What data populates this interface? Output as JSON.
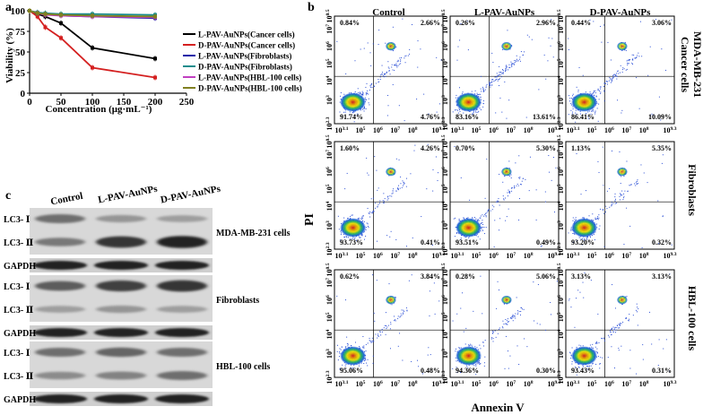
{
  "panels": {
    "a": {
      "label": "a",
      "chart_data": {
        "type": "line",
        "xlabel": "Concentration (μg·mL⁻¹)",
        "ylabel": "Viability (%)",
        "xlim": [
          0,
          250
        ],
        "ylim": [
          0,
          100
        ],
        "xticks": [
          "0",
          "50",
          "100",
          "150",
          "200",
          "250"
        ],
        "yticks": [
          "0",
          "25",
          "50",
          "75",
          "100"
        ],
        "legend_position": "right",
        "x": [
          0,
          12.5,
          25,
          50,
          100,
          200
        ],
        "series": [
          {
            "name": "L-PAV-AuNPs(Cancer cells)",
            "color": "#000000",
            "values": [
              100,
              96,
              93,
              85,
              55,
              42
            ]
          },
          {
            "name": "D-PAV-AuNPs(Cancer cells)",
            "color": "#d42020",
            "values": [
              100,
              93,
              80,
              67,
              31,
              19
            ]
          },
          {
            "name": "L-PAV-AuNPs(Fibroblasts)",
            "color": "#1a1aa8",
            "values": [
              100,
              97,
              96,
              94,
              93,
              91
            ]
          },
          {
            "name": "D-PAV-AuNPs(Fibroblasts)",
            "color": "#198c8c",
            "values": [
              100,
              98,
              97,
              96,
              96,
              95
            ]
          },
          {
            "name": "L-PAV-AuNPs(HBL-100 cells)",
            "color": "#c040c0",
            "values": [
              100,
              97,
              95,
              94,
              93,
              92
            ]
          },
          {
            "name": "D-PAV-AuNPs(HBL-100 cells)",
            "color": "#808020",
            "values": [
              100,
              97,
              96,
              95,
              94,
              93
            ]
          }
        ]
      }
    },
    "b": {
      "label": "b",
      "columns": [
        "Control",
        "L-PAV-AuNPs",
        "D-PAV-AuNPs"
      ],
      "rows": [
        "MDA-MB-231 Cancer cells",
        "Fibroblasts",
        "HBL-100 cells"
      ],
      "xlabel": "Annexin V",
      "ylabel": "PI",
      "x_ticks": [
        "10^3.1",
        "10^5",
        "10^6",
        "10^7",
        "10^8",
        "10^9.3"
      ],
      "y_ticks": [
        "10^0.5",
        "10^7",
        "10^6",
        "10^5",
        "10^4",
        "10^3",
        "10^2.3"
      ],
      "quadrants": [
        [
          {
            "ul": "0.84%",
            "ur": "2.66%",
            "ll": "91.74%",
            "lr": "4.76%"
          },
          {
            "ul": "0.26%",
            "ur": "2.96%",
            "ll": "83.16%",
            "lr": "13.61%"
          },
          {
            "ul": "0.44%",
            "ur": "3.06%",
            "ll": "86.41%",
            "lr": "10.09%"
          }
        ],
        [
          {
            "ul": "1.60%",
            "ur": "4.26%",
            "ll": "93.73%",
            "lr": "0.41%"
          },
          {
            "ul": "0.70%",
            "ur": "5.30%",
            "ll": "93.51%",
            "lr": "0.49%"
          },
          {
            "ul": "1.13%",
            "ur": "5.35%",
            "ll": "93.20%",
            "lr": "0.32%"
          }
        ],
        [
          {
            "ul": "0.62%",
            "ur": "3.84%",
            "ll": "95.06%",
            "lr": "0.48%"
          },
          {
            "ul": "0.28%",
            "ur": "5.06%",
            "ll": "94.36%",
            "lr": "0.30%"
          },
          {
            "ul": "3.13%",
            "ur": "3.13%",
            "ll": "93.43%",
            "lr": "0.31%"
          }
        ]
      ]
    },
    "c": {
      "label": "c",
      "lanes": [
        "Control",
        "L-PAV-AuNPs",
        "D-PAV-AuNPs"
      ],
      "groups": [
        {
          "name": "MDA-MB-231 cells",
          "bands": [
            "LC3- Ⅰ",
            "LC3- Ⅱ"
          ],
          "intensity": [
            [
              0.55,
              0.35,
              0.3
            ],
            [
              0.5,
              0.85,
              0.95
            ]
          ]
        },
        {
          "name": "Fibroblasts",
          "bands": [
            "LC3- Ⅰ",
            "LC3- Ⅱ"
          ],
          "intensity": [
            [
              0.65,
              0.8,
              0.85
            ],
            [
              0.3,
              0.35,
              0.3
            ]
          ]
        },
        {
          "name": "HBL-100 cells",
          "bands": [
            "LC3- Ⅰ",
            "LC3- Ⅱ"
          ],
          "intensity": [
            [
              0.55,
              0.6,
              0.55
            ],
            [
              0.4,
              0.45,
              0.55
            ]
          ]
        }
      ],
      "loading_control": "GAPDH"
    }
  }
}
